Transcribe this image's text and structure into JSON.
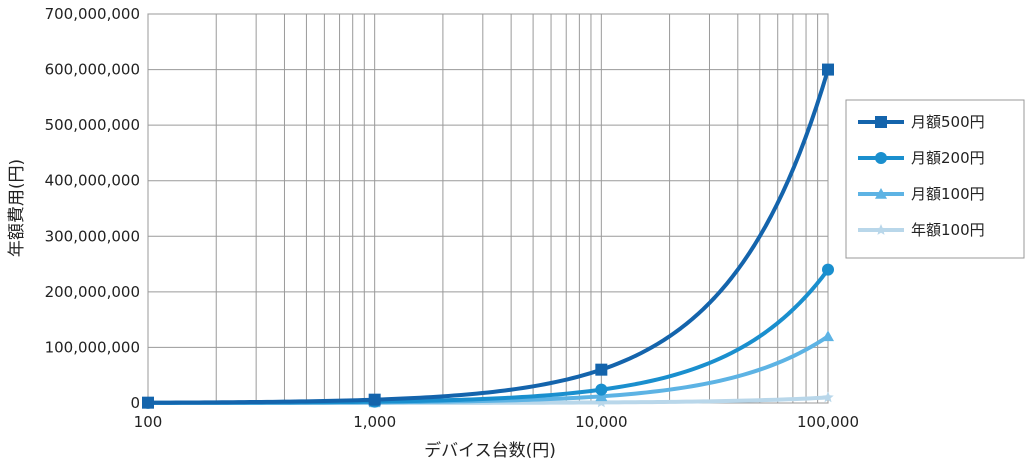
{
  "chart_data": {
    "type": "line",
    "xlabel": "デバイス台数(円)",
    "ylabel": "年額費用(円)",
    "x_scale": "log",
    "x": [
      100,
      1000,
      10000,
      100000
    ],
    "x_tick_labels": [
      "100",
      "1,000",
      "10,000",
      "100,000"
    ],
    "xlim": [
      100,
      100000
    ],
    "ylim": [
      0,
      700000000
    ],
    "y_ticks": [
      0,
      100000000,
      200000000,
      300000000,
      400000000,
      500000000,
      600000000,
      700000000
    ],
    "y_tick_labels": [
      "0",
      "100,000,000",
      "200,000,000",
      "300,000,000",
      "400,000,000",
      "500,000,000",
      "600,000,000",
      "700,000,000"
    ],
    "grid": true,
    "legend_position": "right",
    "series": [
      {
        "name": "月額500円",
        "values": [
          600000,
          6000000,
          60000000,
          600000000
        ],
        "color": "#1464ac",
        "marker": "square"
      },
      {
        "name": "月額200円",
        "values": [
          240000,
          2400000,
          24000000,
          240000000
        ],
        "color": "#1a8fce",
        "marker": "circle"
      },
      {
        "name": "月額100円",
        "values": [
          120000,
          1200000,
          12000000,
          120000000
        ],
        "color": "#5db3e4",
        "marker": "triangle"
      },
      {
        "name": "年額100円",
        "values": [
          10000,
          100000,
          1000000,
          10000000
        ],
        "color": "#b9d7ea",
        "marker": "star"
      }
    ]
  }
}
